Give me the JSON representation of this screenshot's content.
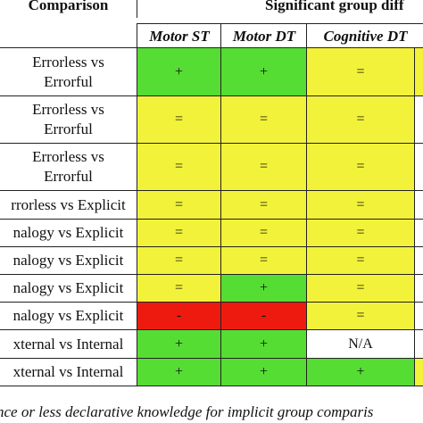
{
  "header": {
    "comparison": "Comparison",
    "significant": "Significant group diff",
    "columns": [
      "Motor ST",
      "Motor DT",
      "Cognitive DT"
    ]
  },
  "colors": {
    "green": "#55dd33",
    "yellow": "#f2f23a",
    "red": "#ee1a10",
    "white": "#ffffff"
  },
  "rows": [
    {
      "label": [
        "Errorless vs",
        "Errorful"
      ],
      "values": [
        "+",
        "+",
        "="
      ],
      "colors": [
        "green",
        "green",
        "yellow",
        "yellow"
      ]
    },
    {
      "label": [
        "Errorless vs",
        "Errorful"
      ],
      "values": [
        "=",
        "=",
        "="
      ],
      "colors": [
        "yellow",
        "yellow",
        "yellow",
        "white"
      ]
    },
    {
      "label": [
        "Errorless vs",
        "Errorful"
      ],
      "values": [
        "=",
        "=",
        "="
      ],
      "colors": [
        "yellow",
        "yellow",
        "yellow",
        "white"
      ]
    },
    {
      "label": [
        "rrorless vs Explicit"
      ],
      "values": [
        "=",
        "=",
        "="
      ],
      "colors": [
        "yellow",
        "yellow",
        "yellow",
        "white"
      ]
    },
    {
      "label": [
        "nalogy vs Explicit"
      ],
      "values": [
        "=",
        "=",
        "="
      ],
      "colors": [
        "yellow",
        "yellow",
        "yellow",
        "white"
      ]
    },
    {
      "label": [
        "nalogy vs Explicit"
      ],
      "values": [
        "=",
        "=",
        "="
      ],
      "colors": [
        "yellow",
        "yellow",
        "yellow",
        "white"
      ]
    },
    {
      "label": [
        "nalogy vs Explicit"
      ],
      "values": [
        "=",
        "+",
        "="
      ],
      "colors": [
        "yellow",
        "green",
        "yellow",
        "white"
      ]
    },
    {
      "label": [
        "nalogy vs Explicit"
      ],
      "values": [
        "-",
        "-",
        "="
      ],
      "colors": [
        "red",
        "red",
        "yellow",
        "white"
      ]
    },
    {
      "label": [
        "xternal vs Internal"
      ],
      "values": [
        "+",
        "+",
        "N/A"
      ],
      "colors": [
        "green",
        "green",
        "white",
        "white"
      ]
    },
    {
      "label": [
        "xternal vs Internal"
      ],
      "values": [
        "+",
        "+",
        "+"
      ],
      "colors": [
        "green",
        "green",
        "green",
        "yellow"
      ]
    }
  ],
  "footer": "nce or less declarative knowledge for implicit group comparis"
}
